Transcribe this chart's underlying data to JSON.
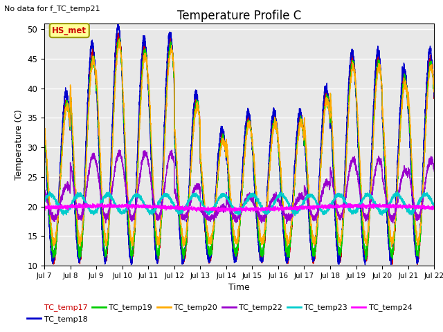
{
  "title": "Temperature Profile C",
  "subtitle": "No data for f_TC_temp21",
  "xlabel": "Time",
  "ylabel": "Temperature (C)",
  "ylim": [
    10,
    51
  ],
  "xlim": [
    0,
    15
  ],
  "hs_met_label": "HS_met",
  "hs_met_color": "#cc0000",
  "hs_met_bg": "#ffff99",
  "hs_met_border": "#999900",
  "x_tick_labels": [
    "Jul 7",
    "Jul 8",
    "Jul 9",
    "Jul 10",
    "Jul 11",
    "Jul 12",
    "Jul 13",
    "Jul 14",
    "Jul 15",
    "Jul 16",
    "Jul 17",
    "Jul 18",
    "Jul 19",
    "Jul 20",
    "Jul 21",
    "Jul 22"
  ],
  "series": [
    {
      "name": "TC_temp17",
      "color": "#cc0000"
    },
    {
      "name": "TC_temp18",
      "color": "#0000cc"
    },
    {
      "name": "TC_temp19",
      "color": "#00cc00"
    },
    {
      "name": "TC_temp20",
      "color": "#ffaa00"
    },
    {
      "name": "TC_temp22",
      "color": "#9900cc"
    },
    {
      "name": "TC_temp23",
      "color": "#00cccc"
    },
    {
      "name": "TC_temp24",
      "color": "#ff00ff"
    }
  ],
  "background_color": "#e8e8e8",
  "plot_bg": "#e8e8e8",
  "grid_color": "#ffffff"
}
